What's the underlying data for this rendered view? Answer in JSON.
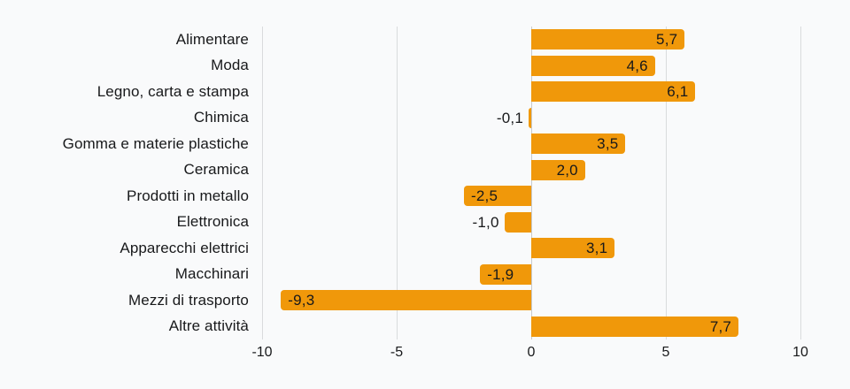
{
  "page": {
    "background": "#F9FAFB"
  },
  "chart_data": {
    "type": "bar",
    "orientation": "horizontal",
    "title": "",
    "categories": [
      "Alimentare",
      "Moda",
      "Legno, carta e stampa",
      "Chimica",
      "Gomma e materie plastiche",
      "Ceramica",
      "Prodotti in metallo",
      "Elettronica",
      "Apparecchi elettrici",
      "Macchinari",
      "Mezzi di trasporto",
      "Altre attività"
    ],
    "values": [
      5.7,
      4.6,
      6.1,
      -0.1,
      3.5,
      2.0,
      -2.5,
      -1.0,
      3.1,
      -1.9,
      -9.3,
      7.7
    ],
    "value_labels": [
      "5,7",
      "4,6",
      "6,1",
      "-0,1",
      "3,5",
      "2,0",
      "-2,5",
      "-1,0",
      "3,1",
      "-1,9",
      "-9,3",
      "7,7"
    ],
    "xlim": [
      -10,
      10
    ],
    "x_ticks": [
      -10,
      -5,
      0,
      5,
      10
    ],
    "x_tick_labels": [
      "-10",
      "-5",
      "0",
      "5",
      "10"
    ],
    "grid": "vertical-only",
    "legend": "none",
    "xlabel": "",
    "ylabel": "",
    "colors": {
      "bar": "#F0980A",
      "text": "#18191B",
      "gridline": "#D9DBDD",
      "zero_line": "#C8CACC",
      "background": "#F9FAFB"
    }
  }
}
